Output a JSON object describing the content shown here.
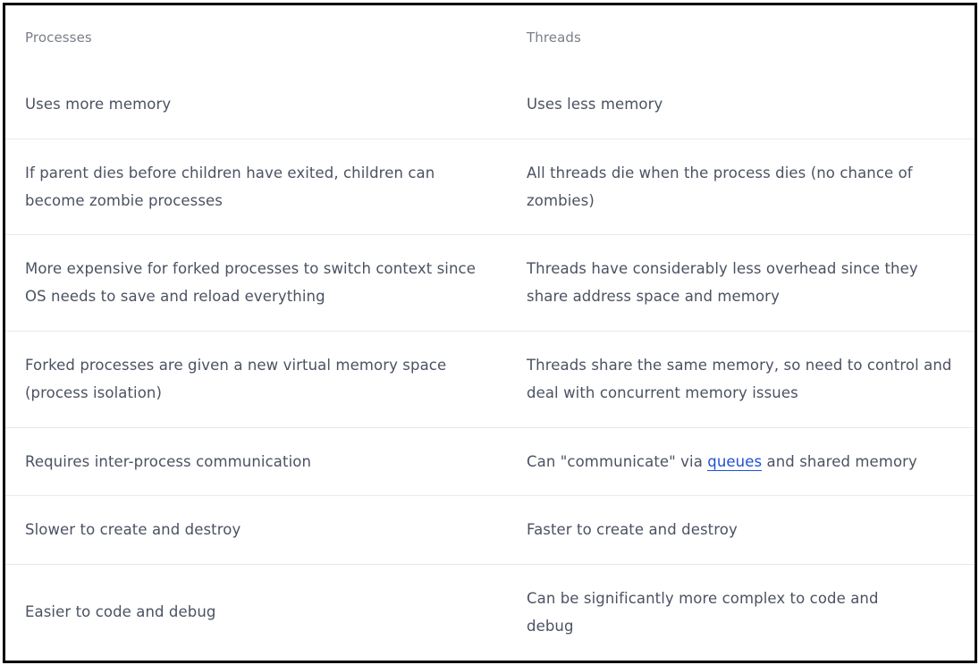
{
  "table": {
    "headers": [
      "Processes",
      "Threads"
    ],
    "rows": [
      [
        "Uses more memory",
        "Uses less memory"
      ],
      [
        "If parent dies before children have exited, children can become zombie processes",
        "All threads die when the process dies (no chance of zombies)"
      ],
      [
        "More expensive for forked processes to switch context since OS needs to save and reload everything",
        "Threads have considerably less overhead since they share address space and memory"
      ],
      [
        "Forked processes are given a new virtual memory space (process isolation)",
        "Threads share the same memory, so need to control and deal with concurrent memory issues"
      ],
      [
        "Requires inter-process communication",
        {
          "before": "Can \"communicate\" via ",
          "link": "queues",
          "after": " and shared memory"
        }
      ],
      [
        "Slower to create and destroy",
        "Faster to create and destroy"
      ],
      [
        "Easier to code and debug",
        "Can be significantly more complex to code and debug"
      ]
    ]
  },
  "colors": {
    "text": "#4b5262",
    "header_text": "#7a7f88",
    "link": "#1f4fd6",
    "divider": "#e8e9eb"
  }
}
